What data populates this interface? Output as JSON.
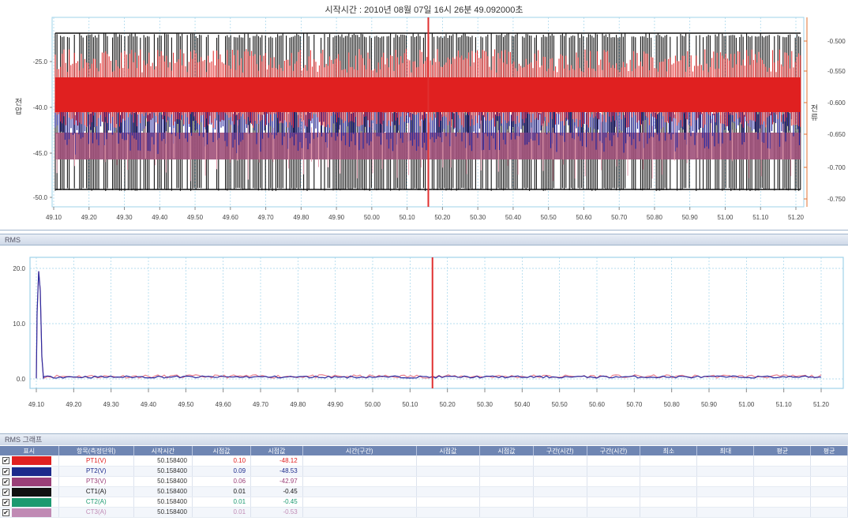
{
  "wave": {
    "title": "시작시간 : 2010년 08월 07일 16시 26분 49.092000초",
    "left_axis_label": "전압",
    "right_axis_label": "전류",
    "left_ticks": [
      "-25.0",
      "-40.0",
      "-45.0",
      "-50.0"
    ],
    "right_ticks": [
      "-0.500",
      "-0.550",
      "-0.600",
      "-0.650",
      "-0.700",
      "-0.750"
    ],
    "x_ticks": [
      "49.10",
      "49.20",
      "49.30",
      "49.40",
      "49.50",
      "49.60",
      "49.70",
      "49.80",
      "49.90",
      "50.00",
      "50.10",
      "50.20",
      "50.30",
      "50.40",
      "50.50",
      "50.60",
      "50.70",
      "50.80",
      "50.90",
      "51.00",
      "51.10",
      "51.20"
    ],
    "colors": {
      "black": "#111111",
      "red": "#e02020",
      "blue": "#2a2aa0",
      "purple": "#a0507a",
      "pink": "#e8a0b0",
      "cursor": "#e03030",
      "grid": "#9fd3ea"
    },
    "cursor_x_value": 50.16
  },
  "rms": {
    "header": "RMS",
    "y_ticks": [
      "20.0",
      "10.0",
      "0.0"
    ],
    "x_ticks": [
      "49.10",
      "49.20",
      "49.30",
      "49.40",
      "49.50",
      "49.60",
      "49.70",
      "49.80",
      "49.90",
      "50.00",
      "50.10",
      "50.20",
      "50.30",
      "50.40",
      "50.50",
      "50.60",
      "50.70",
      "50.80",
      "50.90",
      "51.00",
      "51.10",
      "51.20"
    ],
    "cursor_x_value": 50.16
  },
  "table": {
    "header": "RMS 그래프",
    "columns": [
      "표시",
      "항목(측정단위)",
      "시작시간",
      "시점값",
      "시점값",
      "시간(구간)",
      "시점값",
      "시점값",
      "구간(시간)",
      "구간(시간)",
      "최소",
      "최대",
      "평균",
      "평균"
    ],
    "rows": [
      {
        "color": "#e02020",
        "name": "PT1(V)",
        "name_color": "#e02020",
        "time": "50.158400",
        "v1": "0.10",
        "v1_color": "#e02020",
        "v2": "-48.12",
        "v2_color": "#e02020",
        "checked": "✔"
      },
      {
        "color": "#1c2a8c",
        "name": "PT2(V)",
        "name_color": "#1c2a8c",
        "time": "50.158400",
        "v1": "0.09",
        "v1_color": "#1c2a8c",
        "v2": "-48.53",
        "v2_color": "#1c2a8c",
        "checked": "✔"
      },
      {
        "color": "#9a3f78",
        "name": "PT3(V)",
        "name_color": "#9a3f78",
        "time": "50.158400",
        "v1": "0.06",
        "v1_color": "#9a3f78",
        "v2": "-42.97",
        "v2_color": "#9a3f78",
        "checked": "✔"
      },
      {
        "color": "#111111",
        "name": "CT1(A)",
        "name_color": "#111111",
        "time": "50.158400",
        "v1": "0.01",
        "v1_color": "#111111",
        "v2": "-0.45",
        "v2_color": "#111111",
        "checked": "✔"
      },
      {
        "color": "#1c9a70",
        "name": "CT2(A)",
        "name_color": "#1c9a70",
        "time": "50.158400",
        "v1": "0.01",
        "v1_color": "#1c9a70",
        "v2": "-0.45",
        "v2_color": "#1c9a70",
        "checked": "✔"
      },
      {
        "color": "#c08ab4",
        "name": "CT3(A)",
        "name_color": "#c08ab4",
        "time": "50.158400",
        "v1": "0.01",
        "v1_color": "#c08ab4",
        "v2": "-0.53",
        "v2_color": "#c08ab4",
        "checked": "✔"
      }
    ]
  }
}
